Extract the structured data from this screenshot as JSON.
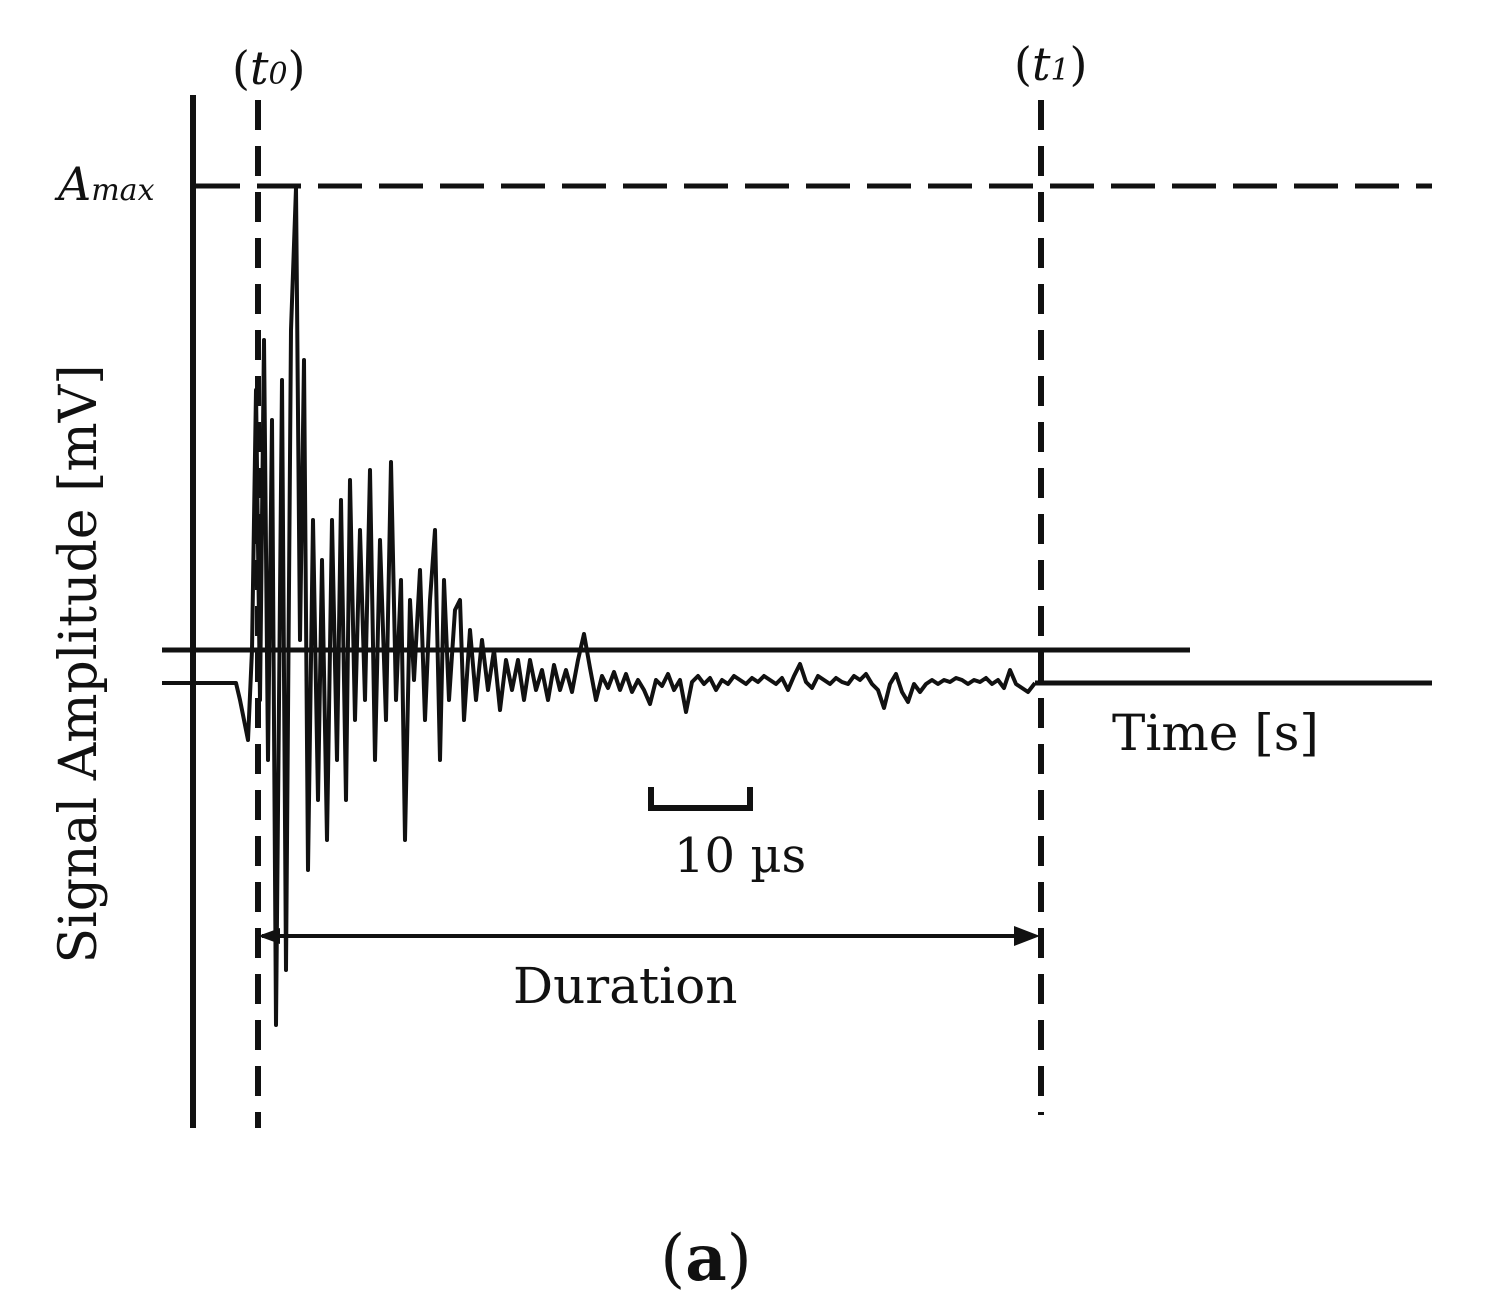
{
  "labels": {
    "t0": {
      "var": "t",
      "sub": "0"
    },
    "t1": {
      "var": "t",
      "sub": "1"
    },
    "amax": {
      "var": "A",
      "sub": "max"
    },
    "y_axis": "Signal Amplitude [mV]",
    "x_axis": "Time [s]",
    "scale_bar": "10 µs",
    "duration": "Duration",
    "panel": "a"
  },
  "colors": {
    "ink": "#111111",
    "background": "#ffffff"
  }
}
